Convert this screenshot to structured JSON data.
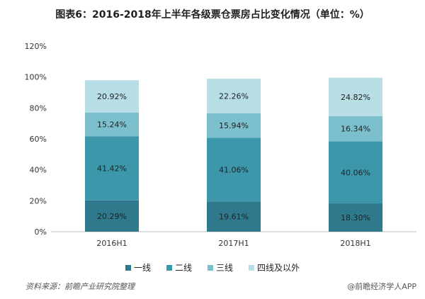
{
  "chart_data": {
    "type": "bar",
    "stacked": true,
    "title": "图表6：2016-2018年上半年各级票仓票房占比变化情况（单位：%）",
    "categories": [
      "2016H1",
      "2017H1",
      "2018H1"
    ],
    "series": [
      {
        "name": "一线",
        "values": [
          20.29,
          19.61,
          18.3
        ],
        "labels": [
          "20.29%",
          "19.61%",
          "18.30%"
        ],
        "color": "#2e7a8c"
      },
      {
        "name": "二线",
        "values": [
          41.42,
          41.06,
          40.06
        ],
        "labels": [
          "41.42%",
          "41.06%",
          "40.06%"
        ],
        "color": "#3c97ab"
      },
      {
        "name": "三线",
        "values": [
          15.24,
          15.94,
          16.34
        ],
        "labels": [
          "15.24%",
          "15.94%",
          "16.34%"
        ],
        "color": "#7cbfcd"
      },
      {
        "name": "四线及以外",
        "values": [
          20.92,
          22.26,
          24.82
        ],
        "labels": [
          "20.92%",
          "22.26%",
          "24.82%"
        ],
        "color": "#b7dde5"
      }
    ],
    "ylim": [
      0,
      120
    ],
    "yticks": [
      "0%",
      "20%",
      "40%",
      "60%",
      "80%",
      "100%",
      "120%"
    ],
    "legend_position": "bottom"
  },
  "footer": {
    "source": "资料来源：前瞻产业研究院整理",
    "brand": "@前瞻经济学人APP"
  }
}
